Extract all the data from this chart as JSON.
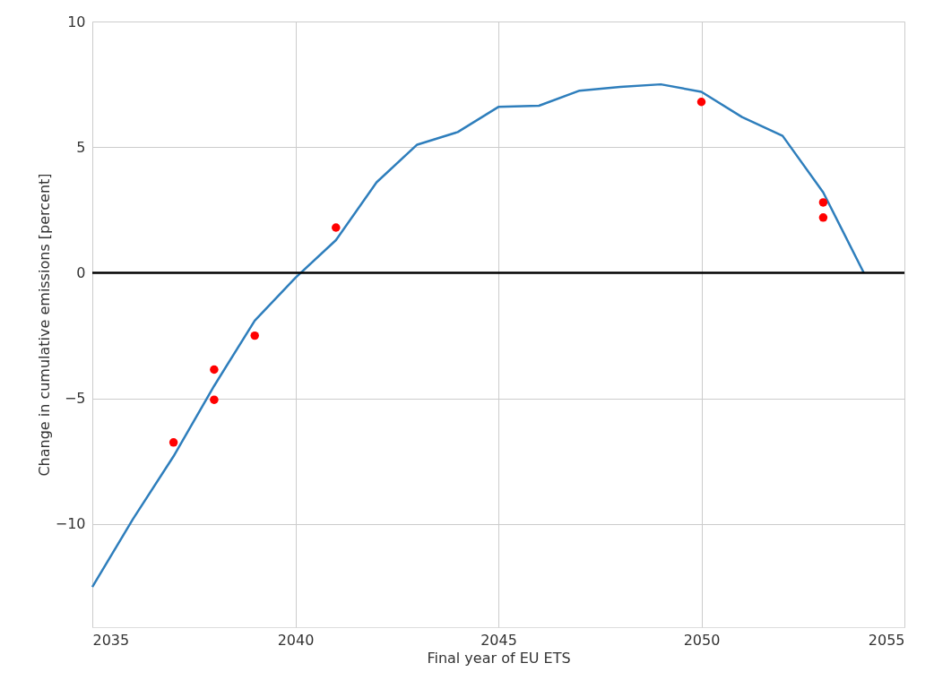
{
  "chart_data": {
    "type": "line",
    "xlabel": "Final year of EU ETS",
    "ylabel": "Change in cumulative emissions [percent]",
    "xlim": [
      2035,
      2055
    ],
    "xticks": [
      2035,
      2040,
      2045,
      2050,
      2055
    ],
    "ylim": [
      -14.1,
      10
    ],
    "yticks": [
      {
        "value": -10,
        "label": "−10"
      },
      {
        "value": -5,
        "label": "−5"
      },
      0,
      5,
      10
    ],
    "grid": true,
    "series": [
      {
        "color": "#2e7ebc",
        "marker": "none",
        "line_style": "solid",
        "x": [
          2035,
          2036,
          2037,
          2038,
          2039,
          2040,
          2041,
          2042,
          2043,
          2044,
          2045,
          2046,
          2047,
          2048,
          2049,
          2050,
          2051,
          2052,
          2053,
          2054
        ],
        "values": [
          -12.5,
          -9.8,
          -7.3,
          -4.5,
          -1.9,
          -0.2,
          1.3,
          3.6,
          5.1,
          5.6,
          6.6,
          6.65,
          7.25,
          7.4,
          7.5,
          7.2,
          6.2,
          5.45,
          3.2,
          0
        ]
      },
      {
        "type": "scatter",
        "color": "#ff0000",
        "marker": "circle",
        "x": [
          2037,
          2038,
          2038,
          2039,
          2041,
          2050,
          2053,
          2053
        ],
        "values": [
          -6.75,
          -3.85,
          -5.05,
          -2.5,
          1.8,
          6.8,
          2.8,
          2.2
        ]
      }
    ],
    "ref_lines": [
      {
        "axis": "y",
        "value": 0,
        "color": "#000000",
        "line_style": "solid"
      }
    ]
  }
}
